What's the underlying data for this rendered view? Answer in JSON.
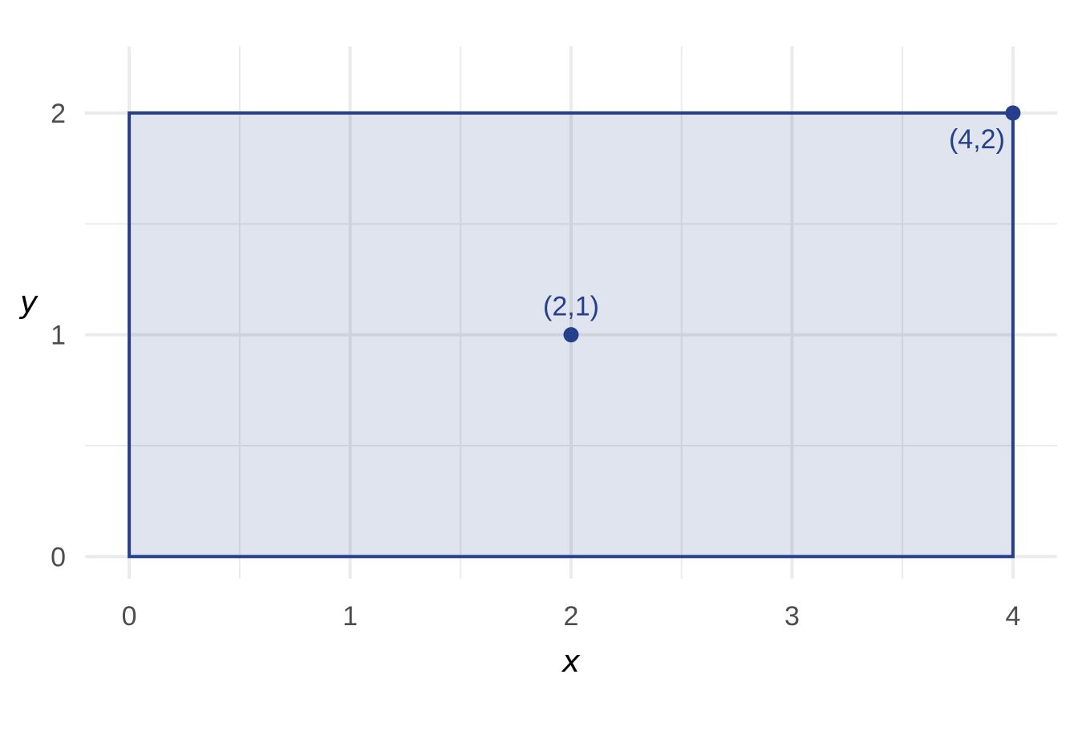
{
  "chart_data": {
    "type": "scatter",
    "title": "",
    "xlabel": "x",
    "ylabel": "y",
    "xlim": [
      -0.2,
      4.2
    ],
    "ylim": [
      -0.1,
      2.3
    ],
    "x_ticks": [
      0,
      1,
      2,
      3,
      4
    ],
    "y_ticks": [
      0,
      1,
      2
    ],
    "x_tick_labels": [
      "0",
      "1",
      "2",
      "3",
      "4"
    ],
    "y_tick_labels": [
      "0",
      "1",
      "2"
    ],
    "grid": true,
    "rectangle": {
      "x0": 0,
      "y0": 0,
      "x1": 4,
      "y1": 2
    },
    "points": [
      {
        "x": 2,
        "y": 1,
        "label": "(2,1)",
        "label_position": "above"
      },
      {
        "x": 4,
        "y": 2,
        "label": "(4,2)",
        "label_position": "below-left"
      }
    ],
    "colors": {
      "accent": "#253f8c",
      "fill": "#e0e4ee",
      "grid": "#ebebeb"
    }
  }
}
